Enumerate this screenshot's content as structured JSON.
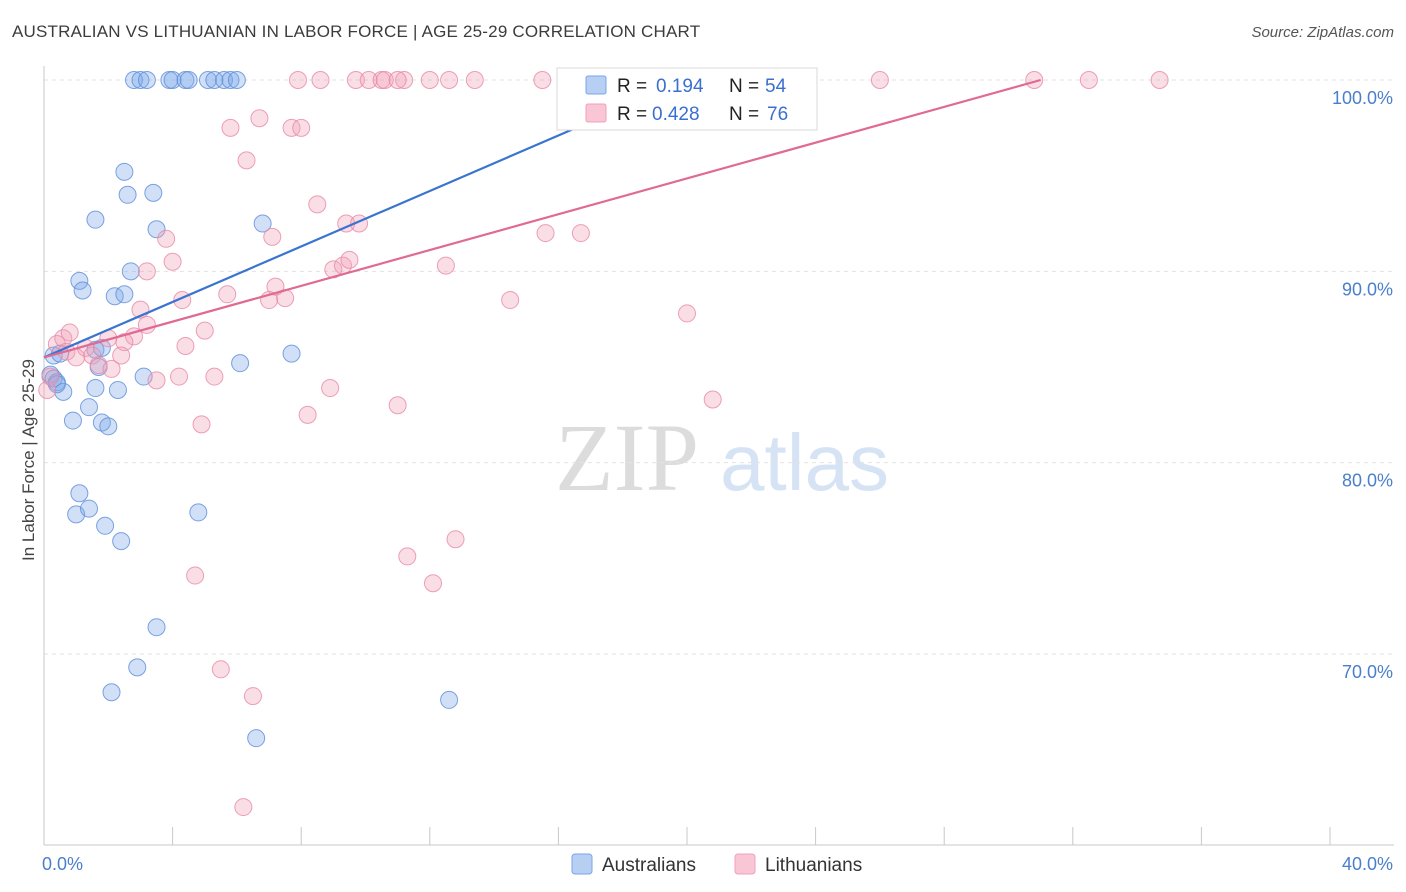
{
  "header": {
    "title": "AUSTRALIAN VS LITHUANIAN IN LABOR FORCE | AGE 25-29 CORRELATION CHART",
    "source": "Source: ZipAtlas.com"
  },
  "watermark": {
    "zip": "ZIP",
    "atlas": "atlas"
  },
  "legend_top": {
    "r_label": "R =",
    "n_label": "N =",
    "rows": [
      {
        "r": "0.194",
        "n": "54",
        "color": "#7aa6e8"
      },
      {
        "r": "0.428",
        "n": "76",
        "color": "#f0a0b8"
      }
    ]
  },
  "legend_bottom": {
    "items": [
      {
        "label": "Australians",
        "color": "#7aa6e8"
      },
      {
        "label": "Lithuanians",
        "color": "#f0a0b8"
      }
    ]
  },
  "chart_data": {
    "type": "scatter",
    "title": "AUSTRALIAN VS LITHUANIAN IN LABOR FORCE | AGE 25-29 CORRELATION CHART",
    "xlabel": "",
    "ylabel": "In Labor Force | Age 25-29",
    "xlim": [
      0,
      40
    ],
    "ylim": [
      60,
      100
    ],
    "x_ticks": [
      {
        "value": 0,
        "label": "0.0%"
      },
      {
        "value": 40,
        "label": "40.0%"
      }
    ],
    "y_ticks": [
      {
        "value": 70,
        "label": "70.0%"
      },
      {
        "value": 80,
        "label": "80.0%"
      },
      {
        "value": 90,
        "label": "90.0%"
      },
      {
        "value": 100,
        "label": "100.0%"
      }
    ],
    "legend_position": "top-center",
    "grid": true,
    "series": [
      {
        "name": "Australians",
        "color": "#7aa6e8",
        "stroke": "#5b8ddb",
        "trend": {
          "x": [
            0,
            20
          ],
          "y": [
            85.5,
            100.0
          ],
          "color": "#3a74d0"
        },
        "points": [
          [
            2.8,
            100
          ],
          [
            3.0,
            100
          ],
          [
            3.2,
            100
          ],
          [
            3.9,
            100
          ],
          [
            4.0,
            100
          ],
          [
            4.4,
            100
          ],
          [
            4.5,
            100
          ],
          [
            5.1,
            100
          ],
          [
            5.3,
            100
          ],
          [
            5.6,
            100
          ],
          [
            5.8,
            100
          ],
          [
            6.0,
            100
          ],
          [
            19.9,
            100
          ],
          [
            2.5,
            95.2
          ],
          [
            2.6,
            94.0
          ],
          [
            3.4,
            94.1
          ],
          [
            1.6,
            92.7
          ],
          [
            3.5,
            92.2
          ],
          [
            6.8,
            92.5
          ],
          [
            1.1,
            89.5
          ],
          [
            1.2,
            89.0
          ],
          [
            2.7,
            90.0
          ],
          [
            2.2,
            88.7
          ],
          [
            2.5,
            88.8
          ],
          [
            0.3,
            85.6
          ],
          [
            0.5,
            85.7
          ],
          [
            1.6,
            85.9
          ],
          [
            1.8,
            86.0
          ],
          [
            7.7,
            85.7
          ],
          [
            6.1,
            85.2
          ],
          [
            0.2,
            84.6
          ],
          [
            0.3,
            84.4
          ],
          [
            0.4,
            84.2
          ],
          [
            0.6,
            83.7
          ],
          [
            1.7,
            85.0
          ],
          [
            3.1,
            84.5
          ],
          [
            1.6,
            83.9
          ],
          [
            2.3,
            83.8
          ],
          [
            0.9,
            82.2
          ],
          [
            1.4,
            82.9
          ],
          [
            1.8,
            82.1
          ],
          [
            2.0,
            81.9
          ],
          [
            1.1,
            78.4
          ],
          [
            1.0,
            77.3
          ],
          [
            1.4,
            77.6
          ],
          [
            1.9,
            76.7
          ],
          [
            2.4,
            75.9
          ],
          [
            4.8,
            77.4
          ],
          [
            3.5,
            71.4
          ],
          [
            2.9,
            69.3
          ],
          [
            2.1,
            68.0
          ],
          [
            12.6,
            67.6
          ],
          [
            6.6,
            65.6
          ],
          [
            0.4,
            84.1
          ]
        ]
      },
      {
        "name": "Lithuanians",
        "color": "#f0a0b8",
        "stroke": "#e888a6",
        "trend": {
          "x": [
            0,
            31
          ],
          "y": [
            85.5,
            100.0
          ],
          "color": "#e06a93"
        },
        "points": [
          [
            7.9,
            100
          ],
          [
            8.6,
            100
          ],
          [
            9.7,
            100
          ],
          [
            10.1,
            100
          ],
          [
            10.5,
            100
          ],
          [
            10.6,
            100
          ],
          [
            11.2,
            100
          ],
          [
            12.0,
            100
          ],
          [
            12.6,
            100
          ],
          [
            13.4,
            100
          ],
          [
            15.5,
            100
          ],
          [
            16.3,
            100
          ],
          [
            26.0,
            100
          ],
          [
            30.8,
            100
          ],
          [
            32.5,
            100
          ],
          [
            34.7,
            100
          ],
          [
            11.0,
            100
          ],
          [
            6.7,
            98.0
          ],
          [
            5.8,
            97.5
          ],
          [
            7.7,
            97.5
          ],
          [
            8.0,
            97.5
          ],
          [
            6.3,
            95.8
          ],
          [
            8.5,
            93.5
          ],
          [
            9.4,
            92.5
          ],
          [
            9.8,
            92.5
          ],
          [
            3.8,
            91.7
          ],
          [
            7.1,
            91.8
          ],
          [
            15.6,
            92.0
          ],
          [
            16.7,
            92.0
          ],
          [
            4.0,
            90.5
          ],
          [
            3.2,
            90.0
          ],
          [
            9.0,
            90.1
          ],
          [
            9.3,
            90.3
          ],
          [
            9.5,
            90.6
          ],
          [
            12.5,
            90.3
          ],
          [
            7.2,
            89.2
          ],
          [
            4.3,
            88.5
          ],
          [
            5.7,
            88.8
          ],
          [
            7.0,
            88.5
          ],
          [
            7.5,
            88.6
          ],
          [
            14.5,
            88.5
          ],
          [
            3.0,
            88.0
          ],
          [
            20.0,
            87.8
          ],
          [
            0.4,
            86.2
          ],
          [
            0.6,
            86.5
          ],
          [
            0.8,
            86.8
          ],
          [
            1.3,
            86.0
          ],
          [
            2.0,
            86.5
          ],
          [
            2.8,
            86.6
          ],
          [
            3.2,
            87.2
          ],
          [
            4.4,
            86.1
          ],
          [
            5.0,
            86.9
          ],
          [
            2.5,
            86.3
          ],
          [
            1.5,
            85.6
          ],
          [
            2.4,
            85.6
          ],
          [
            0.7,
            85.8
          ],
          [
            1.7,
            85.1
          ],
          [
            2.1,
            84.9
          ],
          [
            3.5,
            84.3
          ],
          [
            4.2,
            84.5
          ],
          [
            5.3,
            84.5
          ],
          [
            0.1,
            83.8
          ],
          [
            8.9,
            83.9
          ],
          [
            20.8,
            83.3
          ],
          [
            11.0,
            83.0
          ],
          [
            8.2,
            82.5
          ],
          [
            4.9,
            82.0
          ],
          [
            11.3,
            75.1
          ],
          [
            12.8,
            76.0
          ],
          [
            12.1,
            73.7
          ],
          [
            4.7,
            74.1
          ],
          [
            5.5,
            69.2
          ],
          [
            6.5,
            67.8
          ],
          [
            6.2,
            62.0
          ],
          [
            0.2,
            84.5
          ],
          [
            1.0,
            85.5
          ]
        ]
      }
    ]
  }
}
